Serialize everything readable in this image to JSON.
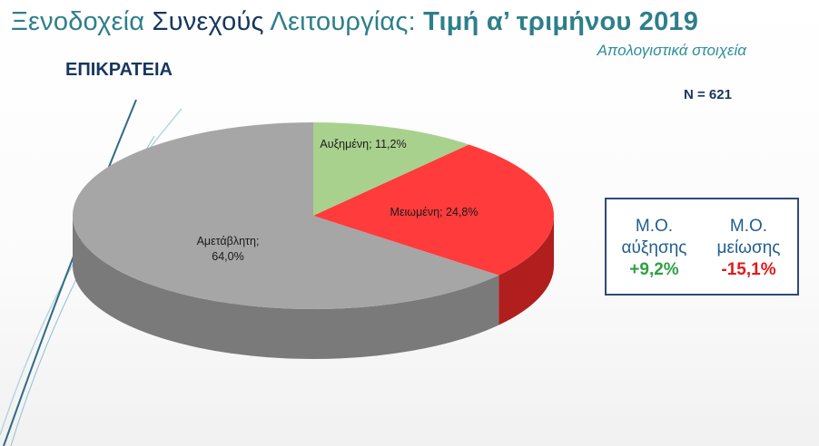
{
  "title": {
    "part1": "Ξενοδοχεία ",
    "part2": "Συνεχούς",
    "part3": " Λειτουργίας: ",
    "part4": "Τιμή α’ τριμήνου 2019"
  },
  "subtitle": "Απολογιστικά στοιχεία",
  "region": "ΕΠΙΚΡΑΤΕΙΑ",
  "sample": "N = 621",
  "summary_box": {
    "increase_label_line1": "Μ.Ο.",
    "increase_label_line2": "αύξησης",
    "increase_value": "+9,2%",
    "decrease_label_line1": "Μ.Ο.",
    "decrease_label_line2": "μείωσης",
    "decrease_value": "-15,1%",
    "colors": {
      "increase": "#2ea043",
      "decrease": "#e11a1a"
    }
  },
  "chart_data": {
    "type": "pie",
    "style": "3d",
    "title": "",
    "categories": [
      "Αυξημένη",
      "Μειωμένη",
      "Αμετάβλητη"
    ],
    "values": [
      11.2,
      24.8,
      64.0
    ],
    "labels": [
      "Αυξημένη; 11,2%",
      "Μειωμένη; 24,8%",
      "Αμετάβλητη;",
      "64,0%"
    ],
    "colors": [
      "#a9d18e",
      "#ff3b3b",
      "#a6a6a6"
    ],
    "side_colors": [
      "#7fa86a",
      "#b01e1e",
      "#7a7a7a"
    ]
  }
}
